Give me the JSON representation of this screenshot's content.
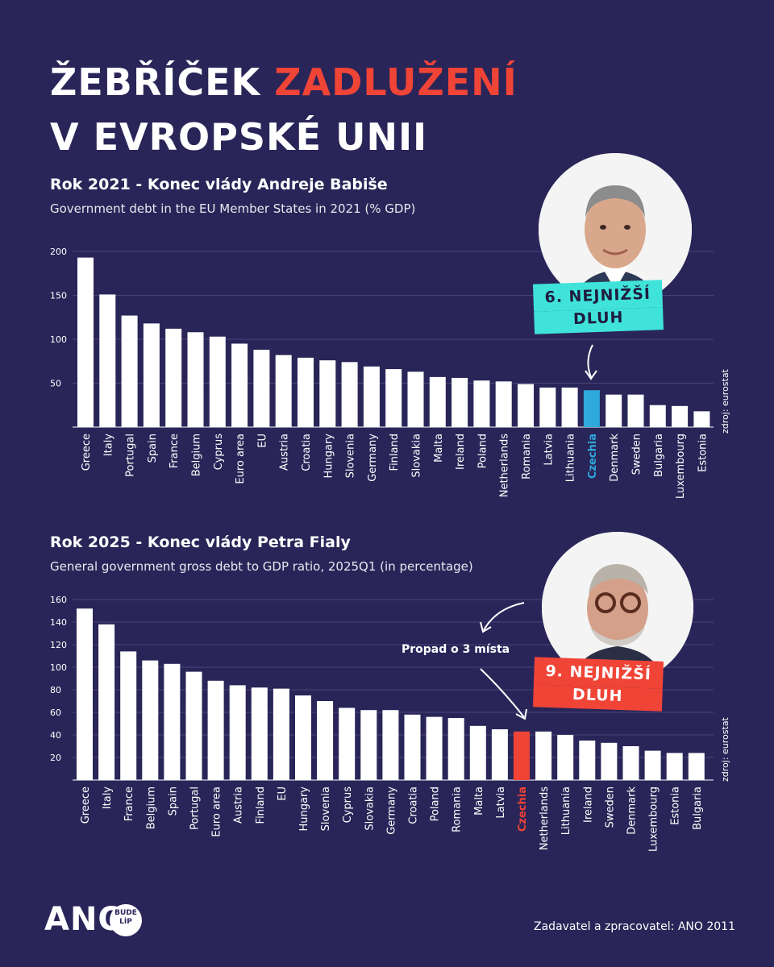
{
  "title": {
    "line1_a": "ŽEBŘÍČEK ",
    "line1_b": "ZADLUŽENÍ",
    "line2": "V EVROPSKÉ UNII"
  },
  "section1": {
    "title": "Rok 2021 - Konec vlády Andreje Babiše",
    "subtitle": "Government debt in the EU Member States in 2021 (% GDP)",
    "badge_line1": "6. NEJNIŽŠÍ",
    "badge_line2": "DLUH",
    "source": "zdroj: eurostat"
  },
  "section2": {
    "title": "Rok 2025 - Konec vlády Petra Fialy",
    "subtitle": "General government gross debt to GDP ratio, 2025Q1 (in percentage)",
    "badge_line1": "9. NEJNIŽŠÍ",
    "badge_line2": "DLUH",
    "annotation": "Propad o 3 místa",
    "source": "zdroj: eurostat"
  },
  "footer": {
    "credit": "Zadavatel a zpracovatel: ANO 2011",
    "logo": "ANO",
    "logo_badge_1": "BUDE",
    "logo_badge_2": "LÍP"
  },
  "colors": {
    "background": "#2a2558",
    "highlight_2021": "#2fa8dc",
    "highlight_2025": "#f04437",
    "bar": "#ffffff",
    "badge_cyan": "#3fe3d9"
  },
  "chart_data": [
    {
      "type": "bar",
      "title": "Government debt in the EU Member States in 2021 (% GDP)",
      "categories": [
        "Greece",
        "Italy",
        "Portugal",
        "Spain",
        "France",
        "Belgium",
        "Cyprus",
        "Euro area",
        "EU",
        "Austria",
        "Croatia",
        "Hungary",
        "Slovenia",
        "Germany",
        "Finland",
        "Slovakia",
        "Malta",
        "Ireland",
        "Poland",
        "Netherlands",
        "Romania",
        "Latvia",
        "Lithuania",
        "Czechia",
        "Denmark",
        "Sweden",
        "Bulgaria",
        "Luxembourg",
        "Estonia"
      ],
      "values": [
        193,
        151,
        127,
        118,
        112,
        108,
        103,
        95,
        88,
        82,
        79,
        76,
        74,
        69,
        66,
        63,
        57,
        56,
        53,
        52,
        49,
        45,
        45,
        42,
        37,
        37,
        25,
        24,
        18
      ],
      "highlight": "Czechia",
      "yticks": [
        50,
        100,
        150,
        200
      ],
      "ylim": [
        0,
        200
      ]
    },
    {
      "type": "bar",
      "title": "General government gross debt to GDP ratio, 2025Q1 (in percentage)",
      "categories": [
        "Greece",
        "Italy",
        "France",
        "Belgium",
        "Spain",
        "Portugal",
        "Euro area",
        "Austria",
        "Finland",
        "EU",
        "Hungary",
        "Slovenia",
        "Cyprus",
        "Slovakia",
        "Germany",
        "Croatia",
        "Poland",
        "Romania",
        "Malta",
        "Latvia",
        "Czechia",
        "Netherlands",
        "Lithuania",
        "Ireland",
        "Sweden",
        "Denmark",
        "Luxembourg",
        "Estonia",
        "Bulgaria"
      ],
      "values": [
        152,
        138,
        114,
        106,
        103,
        96,
        88,
        84,
        82,
        81,
        75,
        70,
        64,
        62,
        62,
        58,
        56,
        55,
        48,
        45,
        43,
        43,
        40,
        35,
        33,
        30,
        26,
        24,
        24
      ],
      "highlight": "Czechia",
      "yticks": [
        20,
        40,
        60,
        80,
        100,
        120,
        140,
        160
      ],
      "ylim": [
        0,
        160
      ]
    }
  ]
}
